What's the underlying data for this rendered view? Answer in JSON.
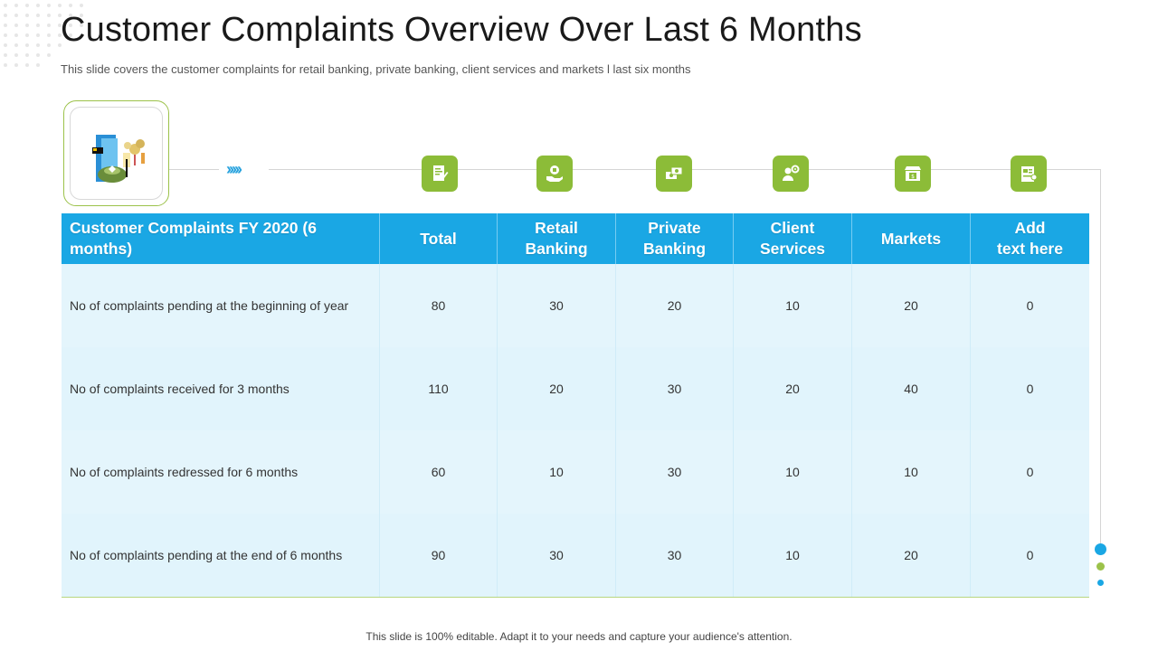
{
  "title": "Customer Complaints Overview Over Last 6 Months",
  "subtitle": "This slide covers the customer complaints for retail banking, private banking, client services and markets l last six months",
  "table": {
    "headers": [
      "Customer Complaints FY 2020 (6 months)",
      "Total",
      "Retail\nBanking",
      "Private\nBanking",
      "Client\nServices",
      "Markets",
      "Add\ntext here"
    ],
    "rows": [
      [
        "No of complaints pending at the beginning of year",
        "80",
        "30",
        "20",
        "10",
        "20",
        "0"
      ],
      [
        "No of complaints received for 3 months",
        "110",
        "20",
        "30",
        "20",
        "40",
        "0"
      ],
      [
        "No of complaints redressed for 6 months",
        "60",
        "10",
        "30",
        "10",
        "10",
        "0"
      ],
      [
        "No of complaints pending at the end of 6 months",
        "90",
        "30",
        "30",
        "10",
        "20",
        "0"
      ]
    ]
  },
  "icons": [
    "document-pen-icon",
    "hand-money-icon",
    "money-bills-icon",
    "client-gear-icon",
    "market-store-icon",
    "report-chart-icon"
  ],
  "decor": {
    "chevrons": "›››››",
    "hero_image": "banking-documents-illustration"
  },
  "colors": {
    "header_blue": "#1aa7e4",
    "icon_green": "#8cbc38",
    "row_bg": "#e1f4fc",
    "accent_blue_dot": "#29a3de",
    "accent_green_dot": "#9cc24a"
  },
  "footer": "This slide is 100% editable. Adapt it to your needs and capture your audience's attention."
}
